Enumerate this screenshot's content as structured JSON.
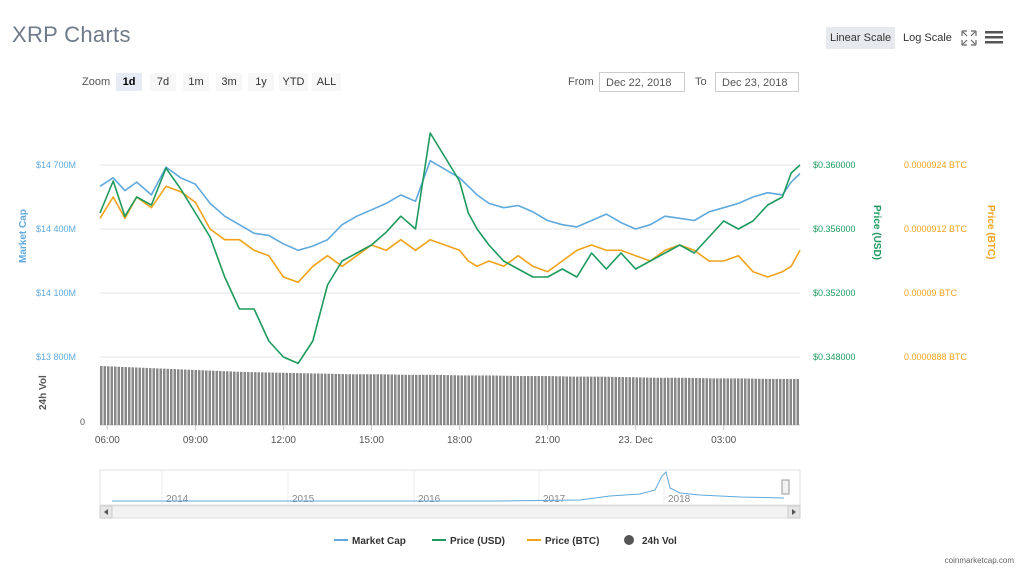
{
  "title": "XRP Charts",
  "scale": {
    "linear_label": "Linear Scale",
    "log_label": "Log Scale",
    "active": "linear"
  },
  "icons": {
    "fullscreen": "fullscreen-icon",
    "menu": "hamburger-menu-icon"
  },
  "zoom": {
    "label": "Zoom",
    "options": [
      "1d",
      "7d",
      "1m",
      "3m",
      "1y",
      "YTD",
      "ALL"
    ],
    "active": "1d"
  },
  "range": {
    "from_label": "From",
    "from": "Dec 22, 2018",
    "to_label": "To",
    "to": "Dec 23, 2018"
  },
  "credit": "coinmarketcap.com",
  "colors": {
    "market_cap": "#5fa9dd",
    "price_usd": "#1e9a5e",
    "price_btc": "#f0a31b",
    "volume": "#555555"
  },
  "chart_data": {
    "type": "line",
    "x_ticks": [
      "06:00",
      "09:00",
      "12:00",
      "15:00",
      "18:00",
      "21:00",
      "23. Dec",
      "03:00"
    ],
    "x_tick_hours": [
      0,
      3,
      6,
      9,
      12,
      15,
      18,
      21
    ],
    "x_range_hours": [
      -0.25,
      23.6
    ],
    "axes": {
      "market_cap": {
        "title": "Market Cap",
        "ticks": [
          "$14 700M",
          "$14 400M",
          "$14 100M",
          "$13 800M"
        ],
        "tick_values": [
          14700,
          14400,
          14100,
          13800
        ],
        "range": [
          13800,
          14700
        ],
        "unit": "M USD"
      },
      "price_usd": {
        "title": "Price (USD)",
        "ticks": [
          "$0.360000",
          "$0.356000",
          "$0.352000",
          "$0.348000"
        ],
        "tick_values": [
          0.36,
          0.356,
          0.352,
          0.348
        ],
        "range": [
          0.348,
          0.36
        ]
      },
      "price_btc": {
        "title": "Price (BTC)",
        "ticks": [
          "0.0000924 BTC",
          "0.0000912 BTC",
          "0.00009 BTC",
          "0.0000888 BTC"
        ],
        "tick_values": [
          9.24e-05,
          9.12e-05,
          9e-05,
          8.88e-05
        ],
        "range": [
          8.88e-05,
          9.24e-05
        ]
      },
      "volume": {
        "title": "24h Vol",
        "ticks": [
          "0"
        ]
      }
    },
    "series": [
      {
        "name": "Market Cap",
        "hours": [
          -0.25,
          0.2,
          0.6,
          1.0,
          1.5,
          2.0,
          2.5,
          3.0,
          3.5,
          4.0,
          4.5,
          5.0,
          5.5,
          6.0,
          6.5,
          7.0,
          7.5,
          8.0,
          8.5,
          9.0,
          9.5,
          10.0,
          10.5,
          11.0,
          11.5,
          12.0,
          12.3,
          12.6,
          13.0,
          13.5,
          14.0,
          14.5,
          15.0,
          15.5,
          16.0,
          16.5,
          17.0,
          17.5,
          18.0,
          18.5,
          19.0,
          19.5,
          20.0,
          20.5,
          21.0,
          21.5,
          22.0,
          22.5,
          23.0,
          23.3,
          23.6
        ],
        "values": [
          14600,
          14640,
          14580,
          14620,
          14560,
          14690,
          14640,
          14610,
          14520,
          14460,
          14420,
          14380,
          14370,
          14330,
          14300,
          14320,
          14350,
          14420,
          14460,
          14490,
          14520,
          14560,
          14530,
          14720,
          14680,
          14640,
          14600,
          14560,
          14520,
          14500,
          14510,
          14480,
          14440,
          14420,
          14410,
          14440,
          14470,
          14430,
          14400,
          14420,
          14460,
          14450,
          14440,
          14480,
          14500,
          14520,
          14550,
          14570,
          14560,
          14620,
          14660
        ]
      },
      {
        "name": "Price (USD)",
        "hours": [
          -0.25,
          0.2,
          0.6,
          1.0,
          1.5,
          2.0,
          2.5,
          3.0,
          3.5,
          4.0,
          4.5,
          5.0,
          5.5,
          6.0,
          6.5,
          7.0,
          7.5,
          8.0,
          8.5,
          9.0,
          9.5,
          10.0,
          10.5,
          11.0,
          11.5,
          12.0,
          12.3,
          12.6,
          13.0,
          13.5,
          14.0,
          14.5,
          15.0,
          15.5,
          16.0,
          16.5,
          17.0,
          17.5,
          18.0,
          18.5,
          19.0,
          19.5,
          20.0,
          20.5,
          21.0,
          21.5,
          22.0,
          22.5,
          23.0,
          23.3,
          23.6
        ],
        "values": [
          0.357,
          0.359,
          0.3568,
          0.358,
          0.3575,
          0.3598,
          0.3585,
          0.357,
          0.3555,
          0.353,
          0.351,
          0.351,
          0.349,
          0.348,
          0.3476,
          0.349,
          0.3525,
          0.354,
          0.3545,
          0.355,
          0.3558,
          0.3568,
          0.356,
          0.362,
          0.3605,
          0.359,
          0.357,
          0.356,
          0.355,
          0.354,
          0.3535,
          0.353,
          0.353,
          0.3535,
          0.353,
          0.3545,
          0.3535,
          0.3545,
          0.3535,
          0.354,
          0.3545,
          0.355,
          0.3545,
          0.3555,
          0.3565,
          0.356,
          0.3565,
          0.3575,
          0.358,
          0.3595,
          0.36
        ]
      },
      {
        "name": "Price (BTC)",
        "hours": [
          -0.25,
          0.2,
          0.6,
          1.0,
          1.5,
          2.0,
          2.5,
          3.0,
          3.5,
          4.0,
          4.5,
          5.0,
          5.5,
          6.0,
          6.5,
          7.0,
          7.5,
          8.0,
          8.5,
          9.0,
          9.5,
          10.0,
          10.5,
          11.0,
          11.5,
          12.0,
          12.3,
          12.6,
          13.0,
          13.5,
          14.0,
          14.5,
          15.0,
          15.5,
          16.0,
          16.5,
          17.0,
          17.5,
          18.0,
          18.5,
          19.0,
          19.5,
          20.0,
          20.5,
          21.0,
          21.5,
          22.0,
          22.5,
          23.0,
          23.3,
          23.6
        ],
        "values": [
          9.14e-05,
          9.18e-05,
          9.14e-05,
          9.18e-05,
          9.16e-05,
          9.2e-05,
          9.19e-05,
          9.17e-05,
          9.12e-05,
          9.1e-05,
          9.1e-05,
          9.08e-05,
          9.07e-05,
          9.03e-05,
          9.02e-05,
          9.05e-05,
          9.07e-05,
          9.05e-05,
          9.07e-05,
          9.09e-05,
          9.08e-05,
          9.1e-05,
          9.08e-05,
          9.1e-05,
          9.09e-05,
          9.08e-05,
          9.06e-05,
          9.05e-05,
          9.06e-05,
          9.05e-05,
          9.07e-05,
          9.05e-05,
          9.04e-05,
          9.06e-05,
          9.08e-05,
          9.09e-05,
          9.08e-05,
          9.08e-05,
          9.07e-05,
          9.06e-05,
          9.08e-05,
          9.09e-05,
          9.08e-05,
          9.06e-05,
          9.06e-05,
          9.07e-05,
          9.04e-05,
          9.03e-05,
          9.04e-05,
          9.05e-05,
          9.08e-05
        ]
      },
      {
        "name": "24h Vol",
        "type": "bar",
        "relative_values": [
          1.0,
          0.98,
          0.96,
          0.94,
          0.92,
          0.9,
          0.89,
          0.88,
          0.87,
          0.86,
          0.86,
          0.85,
          0.85,
          0.84,
          0.84,
          0.83,
          0.83,
          0.82,
          0.82,
          0.81,
          0.8,
          0.8,
          0.79,
          0.79,
          0.78,
          0.78
        ]
      }
    ],
    "legend": {
      "position": "bottom-center",
      "items": [
        "Market Cap",
        "Price (USD)",
        "Price (BTC)",
        "24h Vol"
      ]
    },
    "navigator": {
      "labels": [
        "2014",
        "2015",
        "2016",
        "2017",
        "2018"
      ]
    },
    "grid": true
  }
}
